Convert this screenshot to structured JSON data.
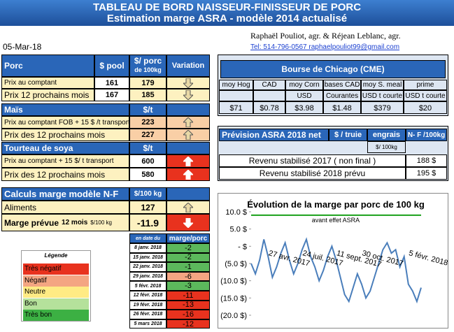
{
  "header": {
    "title": "TABLEAU DE BORD NAISSEUR-FINISSEUR DE PORC",
    "subtitle": "Estimation marge ASRA - modèle 2014 actualisé",
    "authors": "Raphaël Pouliot, agr.    &    Réjean Leblanc, agr.",
    "contact": "Tel:    514-796-0567   raphaelpouliot99@gmail.com",
    "date": "05-Mar-18"
  },
  "porc": {
    "headers": [
      "Porc",
      "$ pool",
      "$/ porc",
      "de 100kg",
      "Variation"
    ],
    "rows": [
      [
        "Prix au comptant",
        161,
        179
      ],
      [
        "Prix 12 prochains mois",
        167,
        185
      ]
    ]
  },
  "mais": {
    "headers": [
      "Maïs",
      "$/t"
    ],
    "rows": [
      [
        "Prix au comptant FOB + 15 $ /t transport",
        223
      ],
      [
        "Prix des 12 prochains mois",
        227
      ]
    ]
  },
  "soya": {
    "headers": [
      "Tourteau de soya",
      "$/t"
    ],
    "rows": [
      [
        "Prix au comptant + 15 $/ t  transport",
        600
      ],
      [
        "Prix des 12 prochains mois",
        580
      ]
    ]
  },
  "calculs": {
    "headers": [
      "Calculs marge  modèle N-F",
      "$/100 kg"
    ],
    "rows": [
      [
        "Aliments",
        127
      ]
    ],
    "marge": {
      "label": "Marge prévue",
      "period": "12 mois",
      "unit": "$/100 kg",
      "value": -11.9
    }
  },
  "historique": {
    "headers": [
      "en date du",
      "marge/porc"
    ],
    "rows": [
      [
        "8 janv. 2018",
        -2
      ],
      [
        "15 janv. 2018",
        -2
      ],
      [
        "22 janv. 2018",
        -1
      ],
      [
        "29 janv. 2018",
        -6
      ],
      [
        "5 févr. 2018",
        -3
      ],
      [
        "12 févr. 2018",
        -11
      ],
      [
        "19 févr. 2018",
        -13
      ],
      [
        "26 févr. 2018",
        -16
      ],
      [
        "5 mars 2018",
        -12
      ]
    ],
    "colors": [
      "#5cb85c",
      "#5cb85c",
      "#5cb85c",
      "#f4a582",
      "#5cb85c",
      "#e8321e",
      "#e8321e",
      "#e8321e",
      "#e8321e"
    ]
  },
  "legende": {
    "title": "Légende",
    "items": [
      "Très négatif",
      "Négatif",
      "Neutre",
      "Bon",
      "Très bon"
    ],
    "colors": [
      "#e8321e",
      "#f4a582",
      "#ffeb84",
      "#b5e19b",
      "#3cb043"
    ]
  },
  "bourse": {
    "title": "Bourse de Chicago (CME)",
    "headers": [
      "moy Hog",
      "CAD",
      "moy Corn",
      "bases CAD",
      "moy S. meal",
      "prime"
    ],
    "units": [
      "USD",
      "Courantes",
      "USD t courte",
      "USD t courte"
    ],
    "values": [
      "$71",
      "$0.78",
      "$3.98",
      "$1.48",
      "$379",
      "$20"
    ]
  },
  "prevision": {
    "headers": [
      "Prévision ASRA 2018 net",
      "$ / truie",
      "engrais",
      "N- F /100kg"
    ],
    "unit": "$/ 100kg",
    "rows": [
      [
        "Revenu stabilisé 2017 ( non final )",
        "188 $"
      ],
      [
        "Revenu stabilisé 2018 prévu",
        "195 $"
      ]
    ]
  },
  "chart_data": {
    "type": "line",
    "title": "Évolution de la marge par porc de 100 kg",
    "categories": [
      null,
      null,
      null,
      null,
      "27 avr. 2017",
      null,
      null,
      null,
      null,
      null,
      null,
      null,
      "24 juil. 2017",
      null,
      null,
      null,
      null,
      null,
      null,
      null,
      "11 sept. 2017",
      null,
      null,
      null,
      null,
      null,
      "30 oct. 2017",
      null,
      null,
      null,
      null,
      null,
      null,
      null,
      null,
      null,
      null,
      "5 févr. 2018",
      null,
      null,
      null
    ],
    "series": [
      {
        "color": "#4a7ebb",
        "values": [
          -5,
          -8,
          -4,
          2,
          -3,
          -9,
          -6,
          -2,
          1,
          -4,
          -8,
          -5,
          -1,
          2,
          -3,
          -6,
          -10,
          -7,
          -3,
          0,
          -4,
          -9,
          -14,
          -16,
          -12,
          -8,
          -11,
          -15,
          -13,
          -9,
          -5,
          -1,
          1,
          -2,
          -1,
          -6,
          -3,
          -11,
          -13,
          -16,
          -12
        ]
      }
    ],
    "reference_line": {
      "value": 9,
      "label": "avant effet ASRA",
      "color": "#19a019"
    },
    "ylim": [
      -20,
      10
    ],
    "yticks": [
      {
        "value": 10,
        "label": "10.0 $"
      },
      {
        "value": 5,
        "label": "5.0 $"
      },
      {
        "value": 0,
        "label": "- $"
      },
      {
        "value": -5,
        "label": "(5.0 $)"
      },
      {
        "value": -10,
        "label": "(10.0 $)"
      },
      {
        "value": -15,
        "label": "(15.0 $)"
      },
      {
        "value": -20,
        "label": "(20.0 $)"
      }
    ],
    "grid": false
  }
}
